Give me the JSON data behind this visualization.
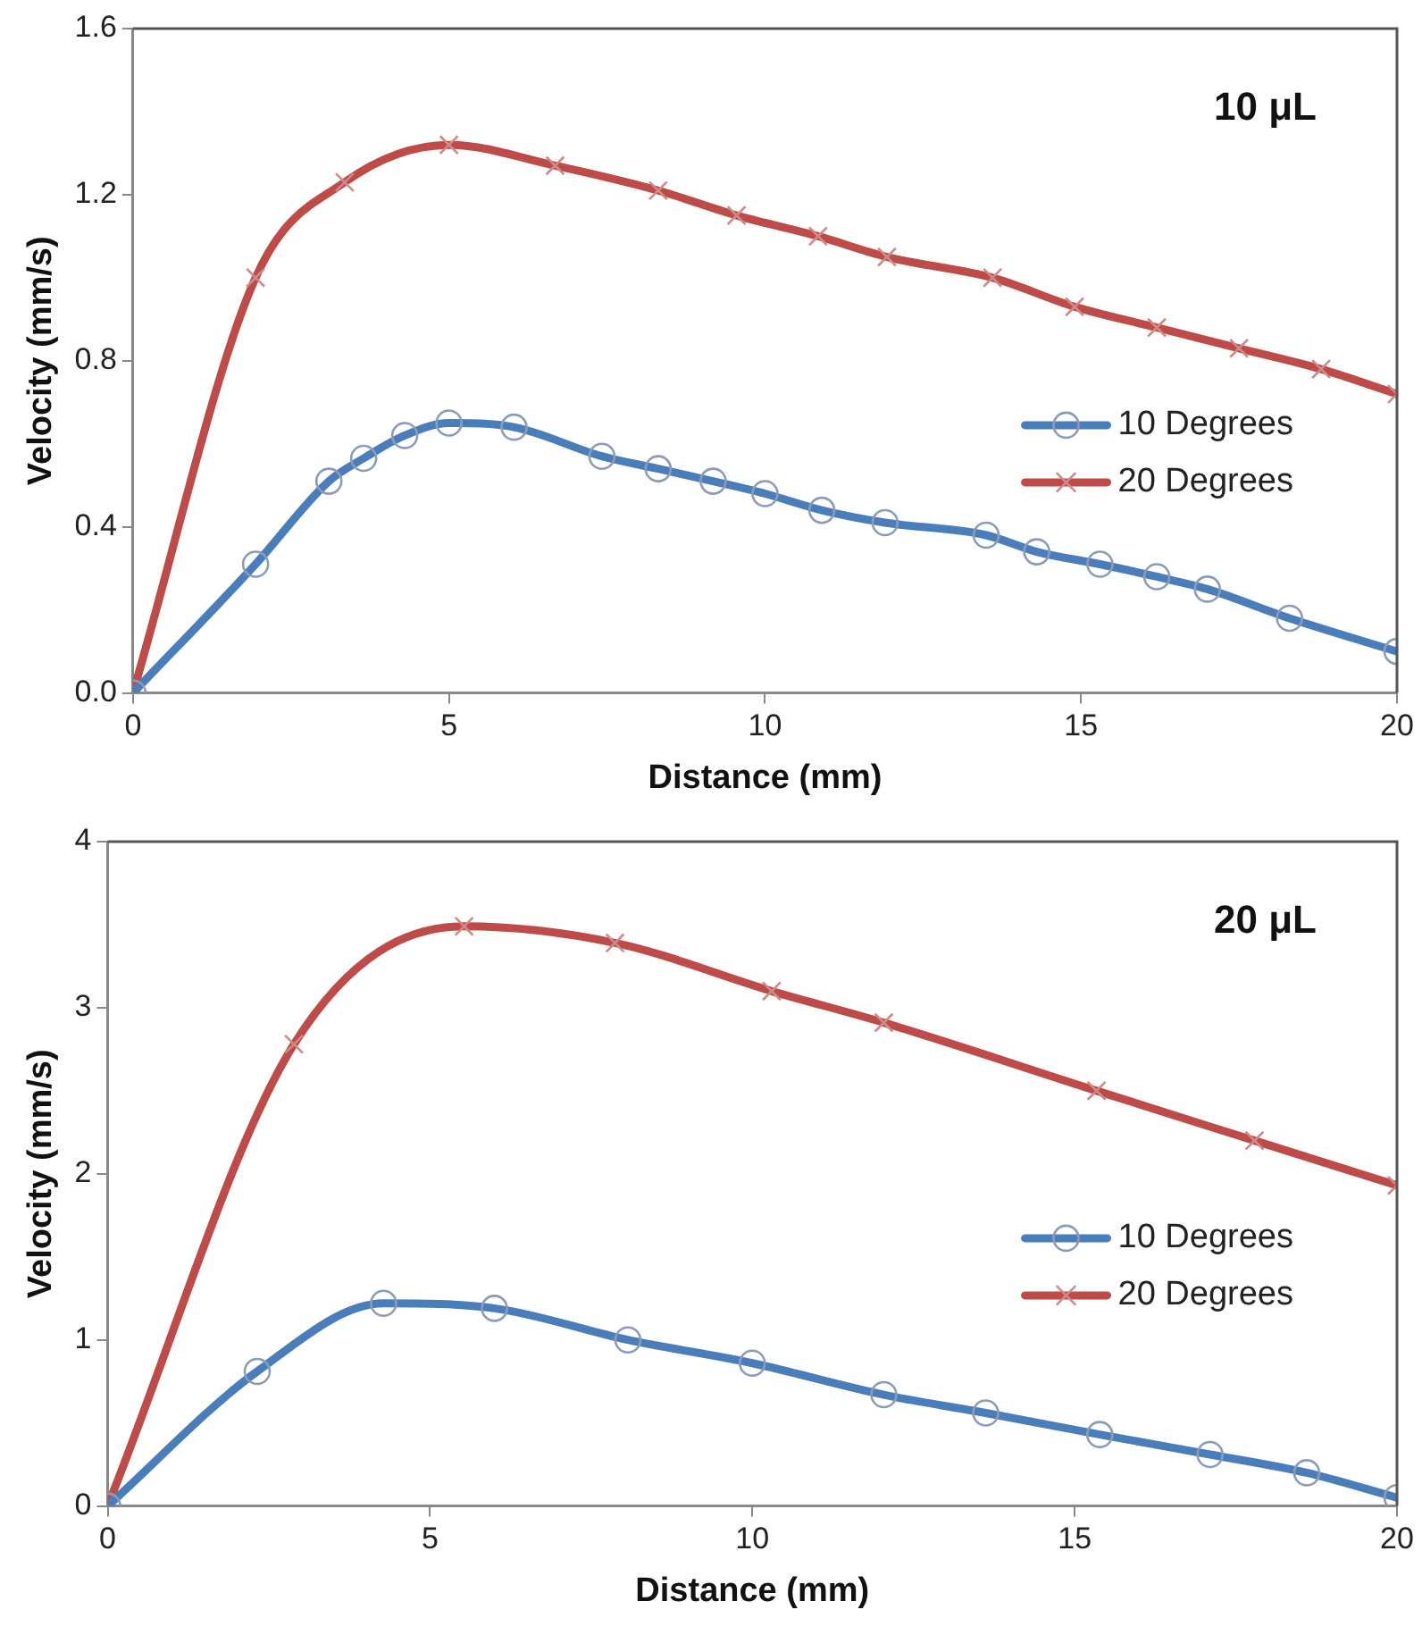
{
  "chart_data": [
    {
      "type": "line",
      "xlabel": "Distance (mm)",
      "ylabel": "Velocity (mm/s)",
      "annotations": [
        "10 μL"
      ],
      "legend": "right",
      "grid": false,
      "xlim": [
        0,
        20
      ],
      "xticks": [
        0,
        5,
        10,
        15,
        20
      ],
      "ylim": [
        0,
        1.6
      ],
      "yticks": [
        {
          "value": 0,
          "label": "0.0"
        },
        {
          "value": 0.4,
          "label": "0.4"
        },
        {
          "value": 0.8,
          "label": "0.8"
        },
        {
          "value": 1.2,
          "label": "1.2"
        },
        {
          "value": 1.6,
          "label": "1.6"
        }
      ],
      "series": [
        {
          "name": "10 Degrees",
          "color": "#4a7ebb",
          "marker": "circle",
          "x": [
            0,
            1.94,
            3.1,
            3.65,
            4.3,
            5.0,
            6.03,
            7.42,
            8.31,
            9.18,
            10.0,
            10.9,
            11.9,
            13.5,
            14.3,
            15.3,
            16.2,
            17.0,
            18.3,
            20
          ],
          "values": [
            0,
            0.31,
            0.51,
            0.565,
            0.62,
            0.65,
            0.64,
            0.57,
            0.54,
            0.51,
            0.48,
            0.44,
            0.41,
            0.38,
            0.34,
            0.31,
            0.28,
            0.25,
            0.18,
            0.1
          ]
        },
        {
          "name": "20 Degrees",
          "color": "#be4b48",
          "marker": "cross",
          "x": [
            0,
            1.94,
            3.35,
            5.0,
            6.68,
            8.31,
            9.55,
            10.84,
            11.93,
            13.6,
            14.9,
            16.2,
            17.5,
            18.8,
            20
          ],
          "values": [
            0,
            1.0,
            1.23,
            1.32,
            1.27,
            1.21,
            1.15,
            1.1,
            1.05,
            1.0,
            0.93,
            0.88,
            0.83,
            0.78,
            0.72
          ]
        }
      ]
    },
    {
      "type": "line",
      "xlabel": "Distance (mm)",
      "ylabel": "Velocity (mm/s)",
      "annotations": [
        "20 μL"
      ],
      "legend": "right",
      "grid": false,
      "xlim": [
        0,
        20
      ],
      "xticks": [
        0,
        5,
        10,
        15,
        20
      ],
      "ylim": [
        0,
        4
      ],
      "yticks": [
        0,
        1,
        2,
        3,
        4
      ],
      "series": [
        {
          "name": "10 Degrees",
          "color": "#4a7ebb",
          "marker": "circle",
          "x": [
            0,
            2.32,
            4.28,
            6.0,
            8.07,
            10.0,
            12.04,
            13.62,
            15.39,
            17.1,
            18.6,
            20
          ],
          "values": [
            0,
            0.81,
            1.22,
            1.19,
            1.0,
            0.86,
            0.67,
            0.56,
            0.43,
            0.31,
            0.2,
            0.05
          ]
        },
        {
          "name": "20 Degrees",
          "color": "#be4b48",
          "marker": "cross",
          "x": [
            0,
            2.89,
            5.53,
            7.87,
            10.3,
            12.04,
            15.34,
            17.79,
            20
          ],
          "values": [
            0,
            2.78,
            3.49,
            3.39,
            3.1,
            2.91,
            2.5,
            2.2,
            1.93
          ]
        }
      ]
    }
  ]
}
